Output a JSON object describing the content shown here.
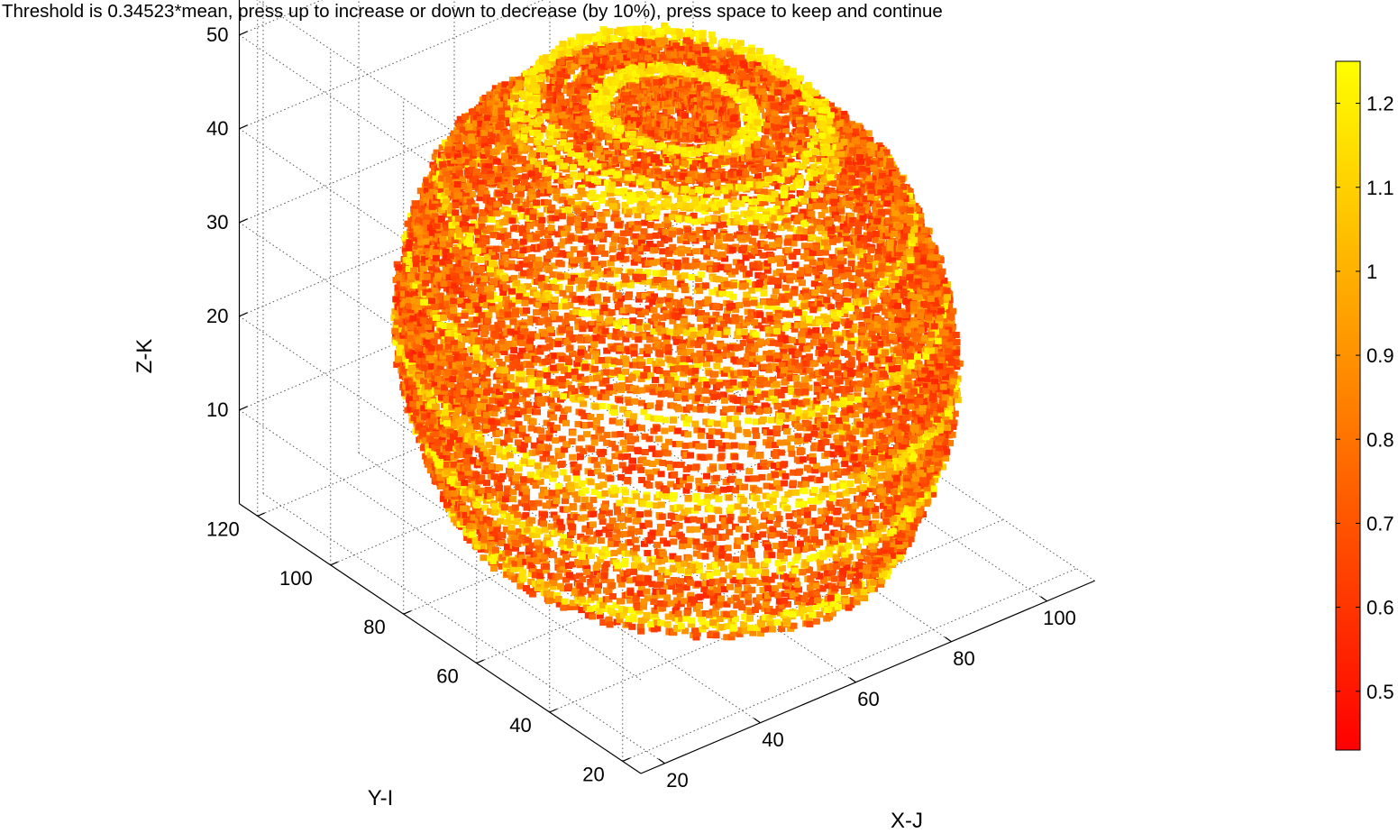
{
  "figure": {
    "title": "Threshold is 0.34523*mean, press up to increase or down to decrease (by 10%), press space to keep and continue"
  },
  "chart_data": {
    "type": "scatter3d",
    "title": "Threshold is 0.34523*mean, press up to increase or down to decrease (by 10%), press space to keep and continue",
    "xlabel": "X-J",
    "ylabel": "Y-I",
    "zlabel": "Z-K",
    "x_ticks": [
      "20",
      "40",
      "60",
      "80",
      "100"
    ],
    "y_ticks": [
      "20",
      "40",
      "60",
      "80",
      "100",
      "120"
    ],
    "z_ticks": [
      "10",
      "20",
      "30",
      "40",
      "50"
    ],
    "xlim": [
      15,
      110
    ],
    "ylim": [
      15,
      125
    ],
    "zlim": [
      0,
      55
    ],
    "grid": true,
    "colormap": "autumn",
    "colorbar": {
      "ticks": [
        "0.5",
        "0.6",
        "0.7",
        "0.8",
        "0.9",
        "1",
        "1.1",
        "1.2"
      ],
      "range": [
        0.43,
        1.25
      ],
      "color_low": "#ff0000",
      "color_high": "#ffff00"
    },
    "threshold_factor": 0.34523,
    "description": "Voxel point cloud shaped as a stack of elliptical rings, colored by intensity (autumn colormap)"
  }
}
